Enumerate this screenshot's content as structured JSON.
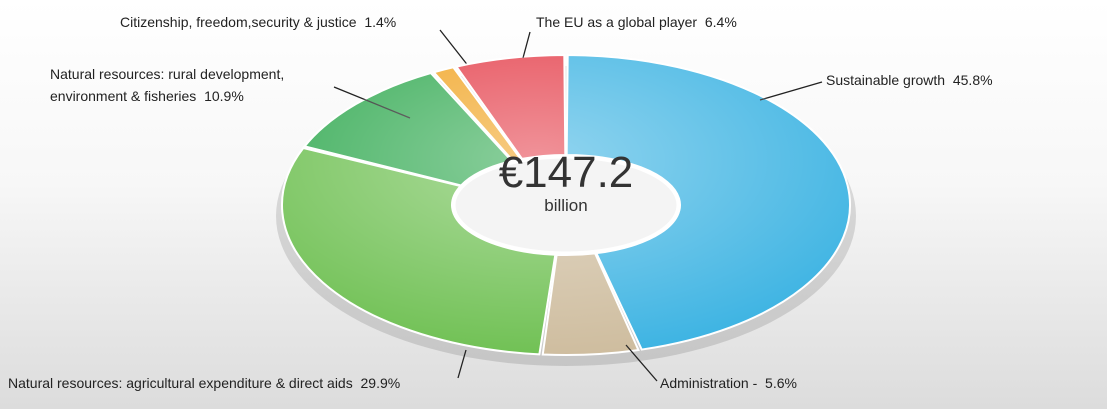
{
  "chart_data": {
    "type": "pie",
    "donut": true,
    "center_label": "€147.2",
    "center_sublabel": "billion",
    "categories": [
      "Sustainable growth",
      "Administration -",
      "Natural resources: agricultural expenditure & direct aids",
      "Natural resources: rural development, environment & fisheries",
      "Citizenship, freedom,security & justice",
      "The EU as a global player"
    ],
    "values": [
      45.8,
      5.6,
      29.9,
      10.9,
      1.4,
      6.4
    ],
    "value_labels": [
      "45.8%",
      "5.6%",
      "29.9%",
      "10.9%",
      "1.4%",
      "6.4%"
    ],
    "colors": [
      "#39b2e2",
      "#cdbb9c",
      "#6cbf4f",
      "#2ea84e",
      "#f0a21e",
      "#e43b47"
    ]
  }
}
